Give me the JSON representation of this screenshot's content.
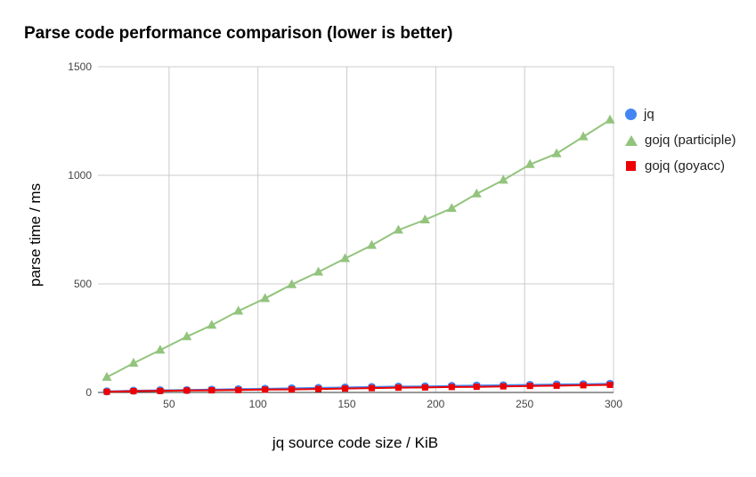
{
  "chart_data": {
    "type": "line",
    "title": "Parse code performance comparison (lower is better)",
    "xlabel": "jq source code size / KiB",
    "ylabel": "parse time / ms",
    "xlim": [
      10,
      300
    ],
    "ylim": [
      0,
      1500
    ],
    "xticks": [
      50,
      100,
      150,
      200,
      250,
      300
    ],
    "yticks": [
      0,
      500,
      1000,
      1500
    ],
    "grid": true,
    "legend_position": "right",
    "x": [
      15,
      30,
      45,
      60,
      74,
      89,
      104,
      119,
      134,
      149,
      164,
      179,
      194,
      209,
      223,
      238,
      253,
      268,
      283,
      298
    ],
    "series": [
      {
        "name": "jq",
        "color": "#4285f4",
        "marker": "circle",
        "values": [
          5,
          8,
          10,
          11,
          13,
          15,
          17,
          19,
          21,
          23,
          25,
          27,
          28,
          30,
          32,
          33,
          35,
          37,
          38,
          40
        ]
      },
      {
        "name": "gojq (participle)",
        "color": "#93c47d",
        "marker": "triangle",
        "values": [
          70,
          135,
          195,
          257,
          310,
          375,
          433,
          497,
          555,
          617,
          678,
          748,
          795,
          848,
          915,
          978,
          1050,
          1100,
          1178,
          1255
        ]
      },
      {
        "name": "gojq (goyacc)",
        "color": "#ee0000",
        "marker": "square",
        "values": [
          3,
          6,
          7,
          9,
          10,
          11,
          13,
          14,
          16,
          18,
          20,
          22,
          23,
          25,
          26,
          28,
          30,
          31,
          33,
          35
        ]
      }
    ]
  }
}
